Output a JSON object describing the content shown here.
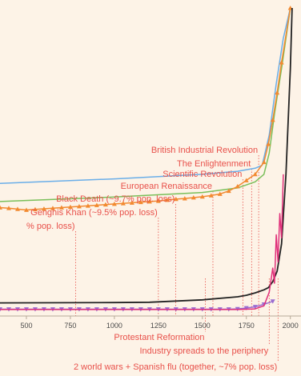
{
  "chart_data": {
    "type": "line",
    "title": "",
    "xlabel": "",
    "ylabel": "",
    "xlim": [
      350,
      2015
    ],
    "ylim": [
      0,
      100
    ],
    "x_ticks": [
      "500",
      "750",
      "1000",
      "1250",
      "1500",
      "1750",
      "2000"
    ],
    "x_tick_values": [
      500,
      750,
      1000,
      1250,
      1500,
      1750,
      2000
    ],
    "series": [
      {
        "color": "#6aaee8",
        "x": [
          350,
          1000,
          1500,
          1700,
          1800,
          1840,
          1880,
          1920,
          1960,
          2000
        ],
        "y": [
          42,
          43.5,
          45,
          46,
          47,
          48,
          58,
          75,
          90,
          100
        ]
      },
      {
        "color": "#7abf5a",
        "x": [
          350,
          1000,
          1500,
          1700,
          1800,
          1850,
          1880,
          1910,
          1950,
          1990,
          2000
        ],
        "y": [
          36,
          37.5,
          39,
          40.5,
          42.5,
          45,
          52,
          65,
          80,
          96,
          100
        ]
      },
      {
        "color": "#f28a30",
        "marker": "triangle-up",
        "x": [
          350,
          400,
          450,
          500,
          550,
          600,
          650,
          700,
          750,
          800,
          850,
          900,
          950,
          1000,
          1050,
          1100,
          1150,
          1200,
          1250,
          1300,
          1350,
          1400,
          1450,
          1500,
          1550,
          1600,
          1650,
          1700,
          1750,
          1800,
          1850,
          1875,
          1900,
          1925,
          1950,
          2000
        ],
        "y": [
          34,
          33.8,
          33.5,
          33.2,
          33.4,
          33.6,
          33.8,
          34,
          34.2,
          34.4,
          34.6,
          34.8,
          35,
          35.2,
          35.4,
          35.6,
          35.8,
          36,
          36.2,
          36.5,
          36.8,
          37,
          37.3,
          37.6,
          38,
          38.5,
          39.5,
          41,
          43,
          45,
          49,
          55,
          63,
          72,
          82,
          100
        ]
      },
      {
        "color": "#222222",
        "x": [
          350,
          1000,
          1200,
          1500,
          1700,
          1750,
          1800,
          1850,
          1875,
          1900,
          1925,
          1950,
          1975,
          2000,
          2010
        ],
        "y": [
          2.5,
          2.6,
          2.7,
          3.5,
          4.5,
          5,
          5.8,
          6.8,
          7.5,
          9.5,
          13,
          22,
          45,
          80,
          100
        ]
      },
      {
        "color": "#9b6cd1",
        "marker": "triangle-down",
        "x": [
          350,
          400,
          450,
          500,
          550,
          600,
          650,
          700,
          750,
          800,
          850,
          900,
          950,
          1000,
          1050,
          1100,
          1150,
          1200,
          1250,
          1300,
          1350,
          1400,
          1450,
          1500,
          1550,
          1600,
          1650,
          1700,
          1750,
          1800,
          1850,
          1900
        ],
        "y": [
          0.4,
          0.4,
          0.4,
          0.4,
          0.4,
          0.4,
          0.4,
          0.4,
          0.4,
          0.4,
          0.4,
          0.4,
          0.4,
          0.4,
          0.4,
          0.4,
          0.4,
          0.4,
          0.4,
          0.4,
          0.4,
          0.4,
          0.4,
          0.4,
          0.4,
          0.4,
          0.4,
          0.5,
          0.8,
          1.2,
          2,
          3
        ]
      },
      {
        "color": "#e0307a",
        "x": [
          350,
          1700,
          1800,
          1850,
          1880,
          1900,
          1910,
          1920,
          1930,
          1940,
          1950,
          1960
        ],
        "y": [
          0.3,
          0.3,
          0.5,
          1.5,
          6,
          14,
          9,
          25,
          16,
          32,
          24,
          45
        ]
      }
    ],
    "annotations": [
      {
        "text": "British Industrial Revolution",
        "x": 1820,
        "side": "top"
      },
      {
        "text": "The Enlightenment",
        "x": 1780,
        "side": "top"
      },
      {
        "text": "Scientific Revolution",
        "x": 1730,
        "side": "top"
      },
      {
        "text": "European Renaissance",
        "x": 1560,
        "side": "top"
      },
      {
        "text": "Black Death (~9.7% pop. loss)",
        "x": 1348,
        "side": "top"
      },
      {
        "text": "Genghis Khan (~9.5% pop. loss)",
        "x": 1250,
        "side": "top"
      },
      {
        "text": "% pop. loss)",
        "x": 780,
        "side": "top"
      },
      {
        "text": "Protestant Reformation",
        "x": 1517,
        "side": "bottom"
      },
      {
        "text": "Industry spreads to the periphery",
        "x": 1880,
        "side": "bottom"
      },
      {
        "text": "2 world wars + Spanish flu (together, ~7%  pop. loss)",
        "x": 1930,
        "side": "bottom"
      }
    ],
    "annotation_color": "#e8504a",
    "grid": false,
    "legend": "none"
  }
}
